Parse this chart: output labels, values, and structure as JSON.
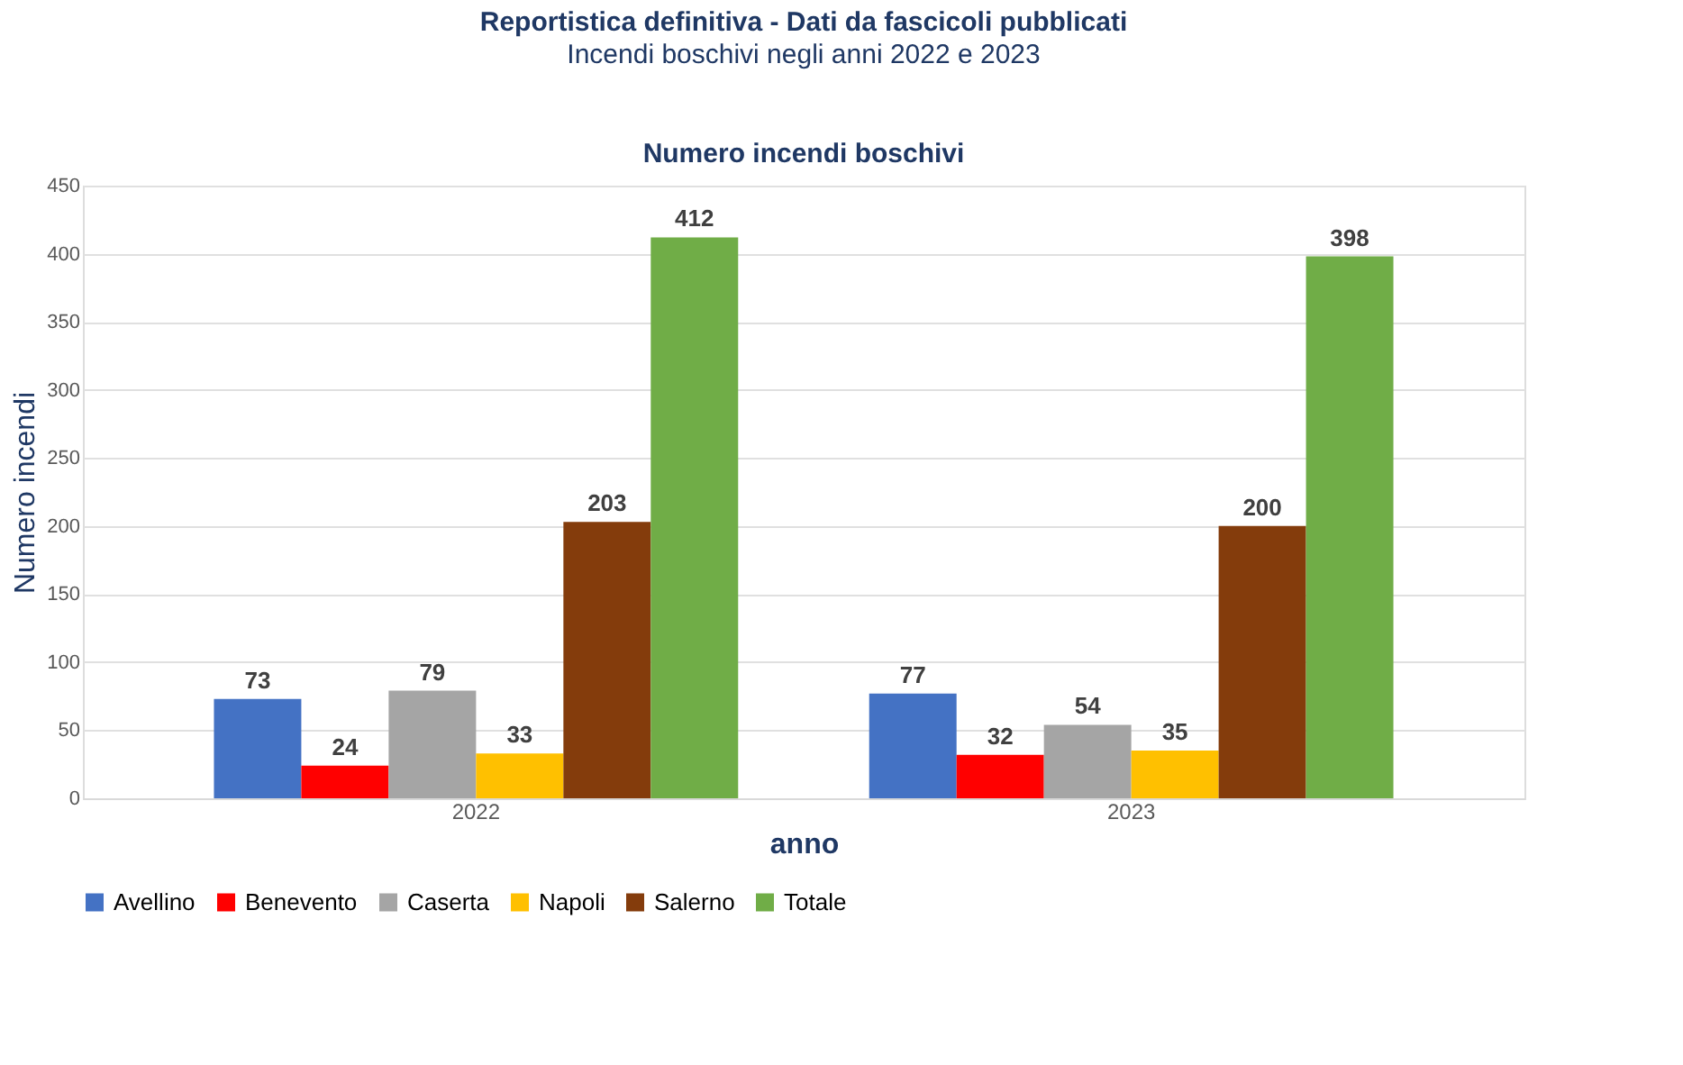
{
  "chart_data": {
    "type": "bar",
    "title": "Reportistica definitiva - Dati da fascicoli pubblicati",
    "subtitle": "Incendi boschivi negli anni 2022 e 2023",
    "annotations": [
      "Numero incendi boschivi"
    ],
    "xlabel": "anno",
    "ylabel": "Numero incendi",
    "categories": [
      "2022",
      "2023"
    ],
    "series": [
      {
        "name": "Avellino",
        "color": "#4472c4",
        "values": [
          73,
          77
        ]
      },
      {
        "name": "Benevento",
        "color": "#ff0000",
        "values": [
          24,
          32
        ]
      },
      {
        "name": "Caserta",
        "color": "#a5a5a5",
        "values": [
          79,
          54
        ]
      },
      {
        "name": "Napoli",
        "color": "#ffc000",
        "values": [
          33,
          35
        ]
      },
      {
        "name": "Salerno",
        "color": "#843c0c",
        "values": [
          203,
          200
        ]
      },
      {
        "name": "Totale",
        "color": "#70ad47",
        "values": [
          412,
          398
        ]
      }
    ],
    "ylim": [
      0,
      450
    ],
    "yticks": [
      0,
      50,
      100,
      150,
      200,
      250,
      300,
      350,
      400,
      450
    ],
    "grid": "y",
    "legend": "bottom",
    "data_labels": true
  }
}
